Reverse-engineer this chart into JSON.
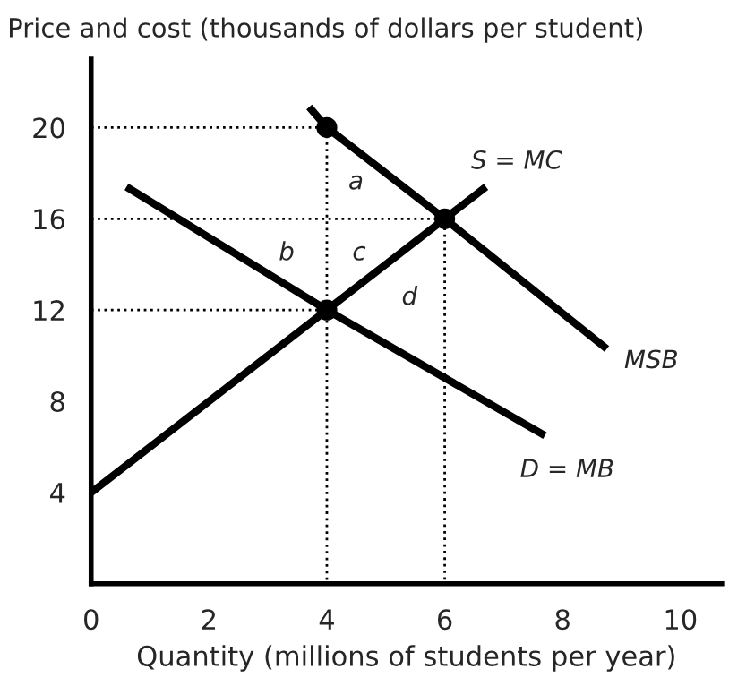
{
  "chart_data": {
    "type": "line",
    "ylabel": "Price and cost (thousands of dollars per student)",
    "xlabel": "Quantity (millions of students per year)",
    "xlim": [
      0,
      10.7
    ],
    "ylim": [
      0,
      23
    ],
    "xticks": [
      0,
      2,
      4,
      6,
      8,
      10
    ],
    "yticks": [
      4,
      8,
      12,
      16,
      20
    ],
    "grid": false,
    "legend": false,
    "marker": "none",
    "line_style": "solid",
    "series": [
      {
        "name": "S = MC",
        "x": [
          0,
          4,
          6,
          6.7
        ],
        "values": [
          4,
          12,
          16,
          17.4
        ],
        "color": "#000000"
      },
      {
        "name": "MSB",
        "x": [
          3.7,
          4,
          6,
          8.75
        ],
        "values": [
          20.9,
          20,
          16,
          10.3
        ],
        "color": "#000000"
      },
      {
        "name": "D = MB",
        "x": [
          0.6,
          4,
          7.7
        ],
        "values": [
          17.4,
          12,
          6.5
        ],
        "color": "#000000"
      },
      {
        "x": [
          0,
          4,
          4
        ],
        "values": [
          20,
          20,
          0
        ],
        "color": "#000000",
        "line_style": "dotted"
      },
      {
        "x": [
          0,
          6,
          6
        ],
        "values": [
          16,
          16,
          0
        ],
        "color": "#000000",
        "line_style": "dotted"
      },
      {
        "x": [
          0,
          4
        ],
        "values": [
          12,
          12
        ],
        "color": "#000000",
        "line_style": "dotted"
      },
      {
        "type": "scatter",
        "x": [
          4,
          6,
          4
        ],
        "values": [
          20,
          16,
          12
        ],
        "color": "#000000",
        "marker": "circle"
      }
    ],
    "annotations": [
      "a",
      "b",
      "c",
      "d"
    ]
  }
}
